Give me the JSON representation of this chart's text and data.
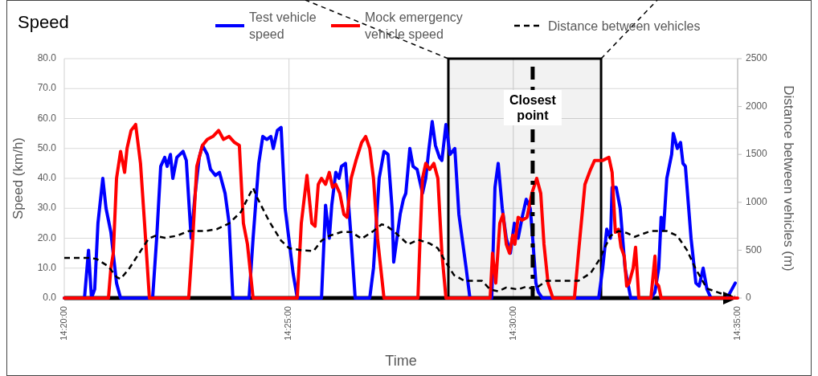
{
  "chart_data": {
    "type": "line",
    "title": "Speed",
    "xlabel": "Time",
    "ylabel": "Speed (km/h)",
    "y2label": "Distance between vehicles (m)",
    "xlim": [
      14.3333,
      14.5833
    ],
    "xticks": [
      {
        "value": 14.3333,
        "label": "14:20:00"
      },
      {
        "value": 14.4167,
        "label": "14:25:00"
      },
      {
        "value": 14.5,
        "label": "14:30:00"
      },
      {
        "value": 14.5833,
        "label": "14:35:00"
      }
    ],
    "ylim": [
      0,
      80
    ],
    "yticks": [
      {
        "value": 0,
        "label": "0.0"
      },
      {
        "value": 10,
        "label": "10.0"
      },
      {
        "value": 20,
        "label": "20.0"
      },
      {
        "value": 30,
        "label": "30.0"
      },
      {
        "value": 40,
        "label": "40.0"
      },
      {
        "value": 50,
        "label": "50.0"
      },
      {
        "value": 60,
        "label": "60.0"
      },
      {
        "value": 70,
        "label": "70.0"
      },
      {
        "value": 80,
        "label": "80.0"
      }
    ],
    "y2lim": [
      0,
      2500
    ],
    "y2ticks": [
      0,
      500,
      1000,
      1500,
      2000,
      2500
    ],
    "grid": true,
    "legend": "top",
    "bands": [
      {
        "axis": "x",
        "from": 14.4759,
        "to": 14.5326,
        "color": "#000000"
      }
    ],
    "ref_lines": [
      {
        "axis": "x",
        "value": 14.5072,
        "label": "Closest point",
        "color": "#000000",
        "line_style": "dashed"
      }
    ],
    "series": [
      {
        "name": "Test vehicle speed",
        "color": "#0000ff",
        "x": [
          14.3333,
          14.3408,
          14.3423,
          14.3434,
          14.3446,
          14.3458,
          14.3476,
          14.3488,
          14.3506,
          14.3527,
          14.3542,
          14.3661,
          14.3676,
          14.3691,
          14.3706,
          14.3715,
          14.3727,
          14.3736,
          14.3751,
          14.3774,
          14.3786,
          14.3804,
          14.3819,
          14.3834,
          14.3846,
          14.3864,
          14.3876,
          14.3894,
          14.3909,
          14.393,
          14.3945,
          14.3959,
          14.4019,
          14.4034,
          14.4055,
          14.407,
          14.4085,
          14.41,
          14.4109,
          14.4124,
          14.4138,
          14.4153,
          14.4183,
          14.4198,
          14.4288,
          14.4303,
          14.4317,
          14.4326,
          14.4341,
          14.4353,
          14.4362,
          14.4377,
          14.4398,
          14.4413,
          14.4467,
          14.4481,
          14.4502,
          14.452,
          14.4535,
          14.455,
          14.4556,
          14.458,
          14.4592,
          14.4601,
          14.4616,
          14.4628,
          14.4643,
          14.4663,
          14.4675,
          14.4687,
          14.4699,
          14.4711,
          14.4726,
          14.4735,
          14.475,
          14.4765,
          14.4783,
          14.4798,
          14.4825,
          14.4839,
          14.492,
          14.4932,
          14.4944,
          14.4959,
          14.4974,
          14.4989,
          14.5004,
          14.5018,
          14.5033,
          14.5048,
          14.5063,
          14.5072,
          14.5084,
          14.5093,
          14.5108,
          14.5317,
          14.5332,
          14.5347,
          14.5361,
          14.5367,
          14.5382,
          14.5397,
          14.5415,
          14.5436,
          14.5511,
          14.5526,
          14.554,
          14.5549,
          14.5558,
          14.557,
          14.5588,
          14.5594,
          14.5609,
          14.5621,
          14.563,
          14.5639,
          14.566,
          14.5678,
          14.569,
          14.5705,
          14.5719,
          14.5734,
          14.5794,
          14.5824
        ],
        "values": [
          0,
          0,
          16,
          0,
          3,
          25,
          40,
          30,
          22,
          5,
          0,
          0,
          20,
          44,
          47,
          44,
          48,
          40,
          47,
          49,
          46,
          20,
          35,
          47,
          51,
          48,
          43,
          41,
          42,
          35,
          25,
          0,
          0,
          20,
          45,
          54,
          53,
          54,
          50,
          56,
          57,
          30,
          8,
          0,
          0,
          31,
          20,
          31,
          42,
          40,
          44,
          45,
          20,
          0,
          0,
          10,
          40,
          49,
          48,
          30,
          12,
          28,
          33,
          35,
          50,
          44,
          43,
          35,
          40,
          50,
          59,
          51,
          47,
          46,
          58,
          48,
          50,
          28,
          10,
          0,
          0,
          37,
          45,
          30,
          20,
          15,
          25,
          20,
          27,
          33,
          30,
          20,
          5,
          2,
          0,
          0,
          10,
          23,
          20,
          37,
          37,
          30,
          10,
          0,
          0,
          2,
          10,
          27,
          23,
          40,
          48,
          55,
          50,
          52,
          45,
          44,
          20,
          5,
          4,
          10,
          3,
          0,
          0,
          5
        ]
      },
      {
        "name": "Mock emergency vehicle speed",
        "color": "#ff0000",
        "x": [
          14.3333,
          14.3497,
          14.3506,
          14.3515,
          14.3527,
          14.3542,
          14.3557,
          14.3566,
          14.3581,
          14.3598,
          14.3616,
          14.3631,
          14.3649,
          14.3795,
          14.381,
          14.3825,
          14.3846,
          14.3864,
          14.3885,
          14.3906,
          14.3924,
          14.3945,
          14.3965,
          14.3983,
          14.3998,
          14.4013,
          14.4034,
          14.4198,
          14.4213,
          14.4234,
          14.4252,
          14.4264,
          14.4276,
          14.4288,
          14.4303,
          14.4317,
          14.4329,
          14.4341,
          14.4356,
          14.4371,
          14.4383,
          14.4398,
          14.4416,
          14.4437,
          14.4452,
          14.4467,
          14.4481,
          14.4496,
          14.452,
          14.4646,
          14.4654,
          14.4663,
          14.4675,
          14.469,
          14.4705,
          14.472,
          14.4735,
          14.475,
          14.4914,
          14.4923,
          14.4935,
          14.495,
          14.4962,
          14.4974,
          14.4986,
          14.4998,
          14.5006,
          14.5018,
          14.5033,
          14.5051,
          14.5069,
          14.5087,
          14.5102,
          14.5114,
          14.5129,
          14.5147,
          14.5227,
          14.5242,
          14.5266,
          14.5287,
          14.5302,
          14.5332,
          14.5355,
          14.5367,
          14.5379,
          14.5391,
          14.54,
          14.5412,
          14.5421,
          14.543,
          14.5445,
          14.5454,
          14.5466,
          14.5511,
          14.5526,
          14.5531,
          14.554,
          14.5549,
          14.5833
        ],
        "values": [
          0,
          0,
          10,
          15,
          40,
          49,
          42,
          50,
          56,
          58,
          45,
          25,
          0,
          0,
          20,
          44,
          51,
          53,
          54,
          56,
          53,
          54,
          52,
          51,
          25,
          18,
          0,
          0,
          25,
          41,
          25,
          24,
          38,
          40,
          38,
          42,
          37,
          38,
          35,
          28,
          27,
          40,
          46,
          52,
          54,
          50,
          40,
          20,
          0,
          0,
          20,
          40,
          45,
          43,
          45,
          40,
          15,
          0,
          0,
          15,
          5,
          25,
          28,
          18,
          15,
          21,
          18,
          27,
          26,
          27,
          35,
          40,
          35,
          18,
          5,
          0,
          0,
          15,
          38,
          43,
          46,
          46,
          47,
          42,
          22,
          23,
          17,
          14,
          4,
          5,
          10,
          17,
          0,
          0,
          14,
          5,
          4,
          0,
          0
        ]
      },
      {
        "name": "Distance between vehicles",
        "color": "#000000",
        "axis": "y2",
        "line_style": "dashed",
        "x": [
          14.3333,
          14.3423,
          14.3452,
          14.3497,
          14.3527,
          14.3542,
          14.3572,
          14.3616,
          14.3646,
          14.367,
          14.3706,
          14.3751,
          14.3795,
          14.3855,
          14.39,
          14.3945,
          14.3989,
          14.4019,
          14.4034,
          14.4049,
          14.4094,
          14.4138,
          14.4168,
          14.4213,
          14.4258,
          14.4288,
          14.4317,
          14.4362,
          14.4398,
          14.4437,
          14.4481,
          14.4511,
          14.4526,
          14.4556,
          14.461,
          14.4646,
          14.469,
          14.472,
          14.475,
          14.478,
          14.4819,
          14.4884,
          14.4914,
          14.4944,
          14.4974,
          14.5018,
          14.5048,
          14.5078,
          14.5123,
          14.5242,
          14.5287,
          14.5317,
          14.5361,
          14.5391,
          14.5421,
          14.5451,
          14.5511,
          14.557,
          14.5609,
          14.5645,
          14.5678,
          14.5719,
          14.5779,
          14.5824
        ],
        "values": [
          420,
          420,
          410,
          330,
          220,
          200,
          300,
          490,
          620,
          650,
          630,
          650,
          700,
          700,
          720,
          780,
          900,
          1070,
          1150,
          1050,
          800,
          600,
          520,
          500,
          490,
          600,
          650,
          690,
          690,
          620,
          700,
          770,
          760,
          700,
          560,
          610,
          570,
          520,
          370,
          240,
          180,
          180,
          90,
          70,
          110,
          90,
          120,
          90,
          180,
          180,
          260,
          390,
          650,
          700,
          680,
          640,
          700,
          700,
          650,
          500,
          300,
          100,
          40,
          20
        ]
      }
    ]
  }
}
